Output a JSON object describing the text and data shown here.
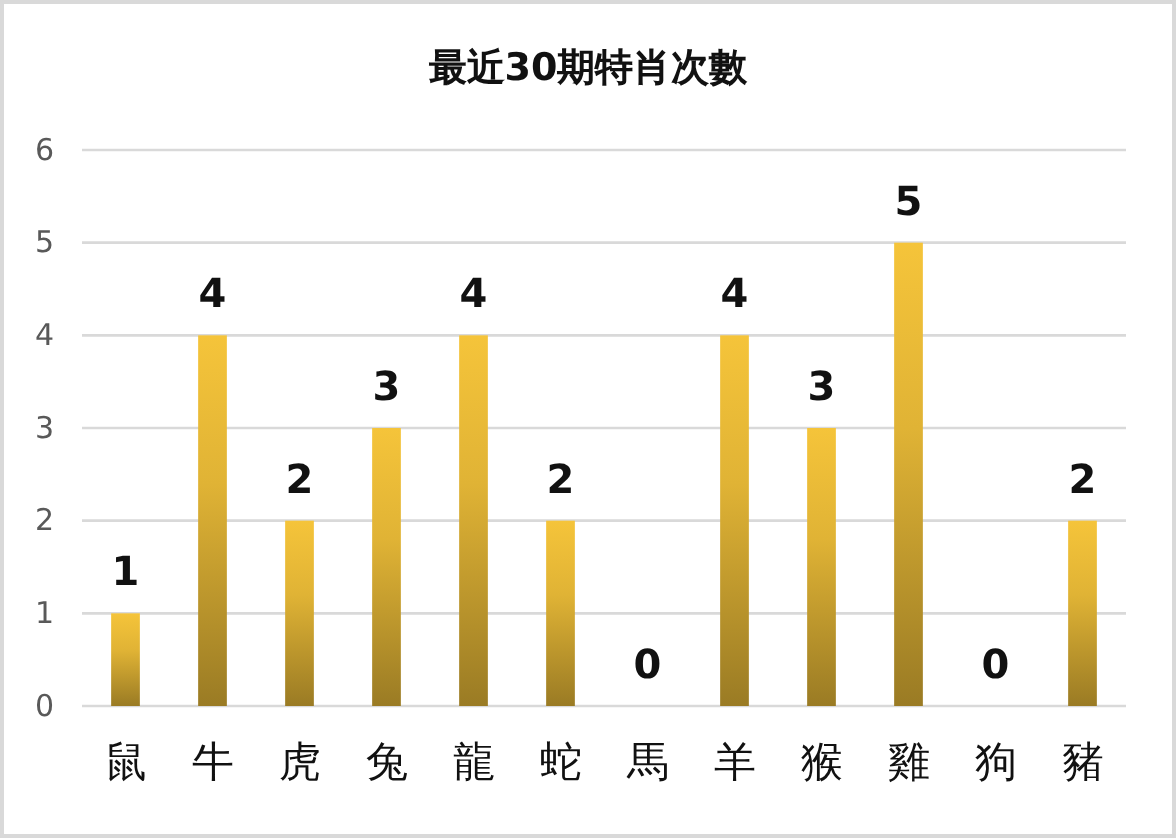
{
  "chart_data": {
    "type": "bar",
    "title": "最近30期特肖次數",
    "categories": [
      "鼠",
      "牛",
      "虎",
      "兔",
      "龍",
      "蛇",
      "馬",
      "羊",
      "猴",
      "雞",
      "狗",
      "豬"
    ],
    "values": [
      1,
      4,
      2,
      3,
      4,
      2,
      0,
      4,
      3,
      5,
      0,
      2
    ],
    "color": "#f5c43a",
    "ylim": [
      0,
      6
    ],
    "yticks": [
      0,
      1,
      2,
      3,
      4,
      5,
      6
    ],
    "grid": "y",
    "data_labels": true
  }
}
